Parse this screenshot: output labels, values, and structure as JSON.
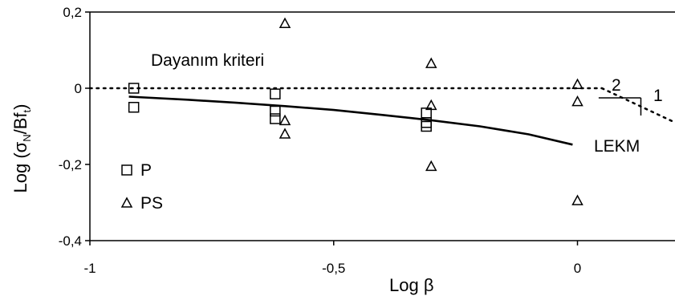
{
  "chart_data": {
    "type": "scatter",
    "x_axis": {
      "label": "Log β",
      "range": [
        -1,
        0.2
      ],
      "ticks": [
        -1,
        -0.5,
        0
      ],
      "tick_labels": [
        "-1",
        "-0,5",
        "0"
      ]
    },
    "y_axis": {
      "label_parts": [
        "Log (σ",
        "N",
        "/Bf",
        "t",
        ")"
      ],
      "range": [
        -0.4,
        0.2
      ],
      "ticks": [
        -0.4,
        -0.2,
        0,
        0.2
      ],
      "tick_labels": [
        "-0,4",
        "-0,2",
        "0",
        "0,2"
      ]
    },
    "grid": false,
    "legend_placement": "bottom-left",
    "series": [
      {
        "name": "P",
        "marker": "square",
        "points": [
          {
            "x": -0.91,
            "y": 0.0
          },
          {
            "x": -0.91,
            "y": -0.05
          },
          {
            "x": -0.62,
            "y": -0.015
          },
          {
            "x": -0.62,
            "y": -0.06
          },
          {
            "x": -0.62,
            "y": -0.08
          },
          {
            "x": -0.31,
            "y": -0.065
          },
          {
            "x": -0.31,
            "y": -0.09
          },
          {
            "x": -0.31,
            "y": -0.1
          }
        ]
      },
      {
        "name": "PS",
        "marker": "triangle",
        "points": [
          {
            "x": -0.6,
            "y": 0.17
          },
          {
            "x": -0.6,
            "y": -0.085
          },
          {
            "x": -0.6,
            "y": -0.12
          },
          {
            "x": -0.3,
            "y": 0.065
          },
          {
            "x": -0.3,
            "y": -0.045
          },
          {
            "x": -0.3,
            "y": -0.205
          },
          {
            "x": 0.0,
            "y": 0.01
          },
          {
            "x": 0.0,
            "y": -0.035
          },
          {
            "x": 0.0,
            "y": -0.295
          }
        ]
      }
    ],
    "lines": [
      {
        "label": "Dayanım kriteri",
        "style": "dotted",
        "points": [
          [
            -1,
            0
          ],
          [
            0.05,
            0
          ]
        ]
      },
      {
        "label": "",
        "style": "dotted",
        "points": [
          [
            0.05,
            0
          ],
          [
            0.2,
            -0.09
          ]
        ]
      },
      {
        "label": "LEKM",
        "style": "solid",
        "points": [
          [
            -0.92,
            -0.022
          ],
          [
            -0.8,
            -0.03
          ],
          [
            -0.7,
            -0.038
          ],
          [
            -0.6,
            -0.047
          ],
          [
            -0.5,
            -0.057
          ],
          [
            -0.4,
            -0.07
          ],
          [
            -0.3,
            -0.084
          ],
          [
            -0.2,
            -0.1
          ],
          [
            -0.1,
            -0.121
          ],
          [
            -0.01,
            -0.148
          ]
        ]
      }
    ],
    "slope_annotation": {
      "run_label": "2",
      "rise_label": "1"
    },
    "legend": [
      {
        "label": "P",
        "marker": "square"
      },
      {
        "label": "PS",
        "marker": "triangle"
      }
    ]
  }
}
